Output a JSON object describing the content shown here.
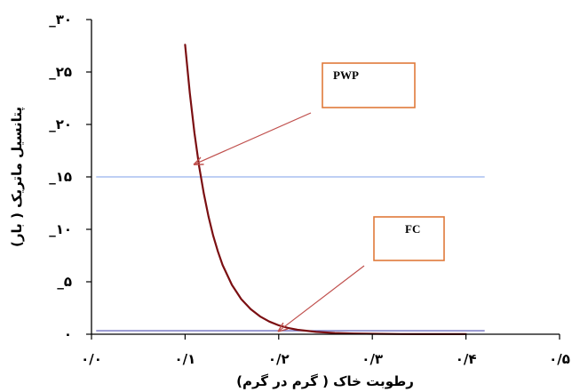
{
  "chart_data": {
    "type": "line",
    "xlabel": "رطوبت خاک ( گرم در گرم)",
    "ylabel": "پتانسیل ماتریک ( بار)",
    "xlim": [
      0,
      0.5
    ],
    "ylim": [
      0,
      -30
    ],
    "x_ticks": [
      {
        "value": 0,
        "label": "۰/۰"
      },
      {
        "value": 0.1,
        "label": "۰/۱"
      },
      {
        "value": 0.2,
        "label": "۰/۲"
      },
      {
        "value": 0.3,
        "label": "۰/۳"
      },
      {
        "value": 0.4,
        "label": "۰/۴"
      },
      {
        "value": 0.5,
        "label": "۰/۵"
      }
    ],
    "y_ticks": [
      {
        "value": 0,
        "label": "۰"
      },
      {
        "value": -5,
        "label": "_۵"
      },
      {
        "value": -10,
        "label": "_۱۰"
      },
      {
        "value": -15,
        "label": "_۱۵"
      },
      {
        "value": -20,
        "label": "_۲۰"
      },
      {
        "value": -25,
        "label": "_۲۵"
      },
      {
        "value": -30,
        "label": "_۳۰"
      }
    ],
    "grid": false,
    "series": [
      {
        "color": "#7b0f12",
        "x": [
          0.1,
          0.105,
          0.11,
          0.115,
          0.12,
          0.125,
          0.13,
          0.135,
          0.14,
          0.15,
          0.16,
          0.17,
          0.18,
          0.19,
          0.2,
          0.21,
          0.22,
          0.24,
          0.26,
          0.28,
          0.3,
          0.33,
          0.36,
          0.4
        ],
        "y": [
          -27.6,
          -23.0,
          -19.2,
          -16.0,
          -13.4,
          -11.2,
          -9.4,
          -7.9,
          -6.6,
          -4.7,
          -3.35,
          -2.4,
          -1.7,
          -1.2,
          -0.85,
          -0.6,
          -0.42,
          -0.22,
          -0.12,
          -0.07,
          -0.04,
          -0.02,
          -0.01,
          -0.005
        ]
      }
    ],
    "reference_lines": [
      {
        "y": -15,
        "color": "#a9bff0"
      },
      {
        "y": -0.33,
        "color": "#6f6fbf"
      }
    ],
    "annotations": [
      {
        "label": "PWP",
        "target": [
          0.11,
          -16.2
        ]
      },
      {
        "label": "FC",
        "target": [
          0.2,
          -0.3
        ]
      }
    ],
    "colors": {
      "accent": "#e07a3a",
      "arrow": "#c0504d"
    }
  }
}
